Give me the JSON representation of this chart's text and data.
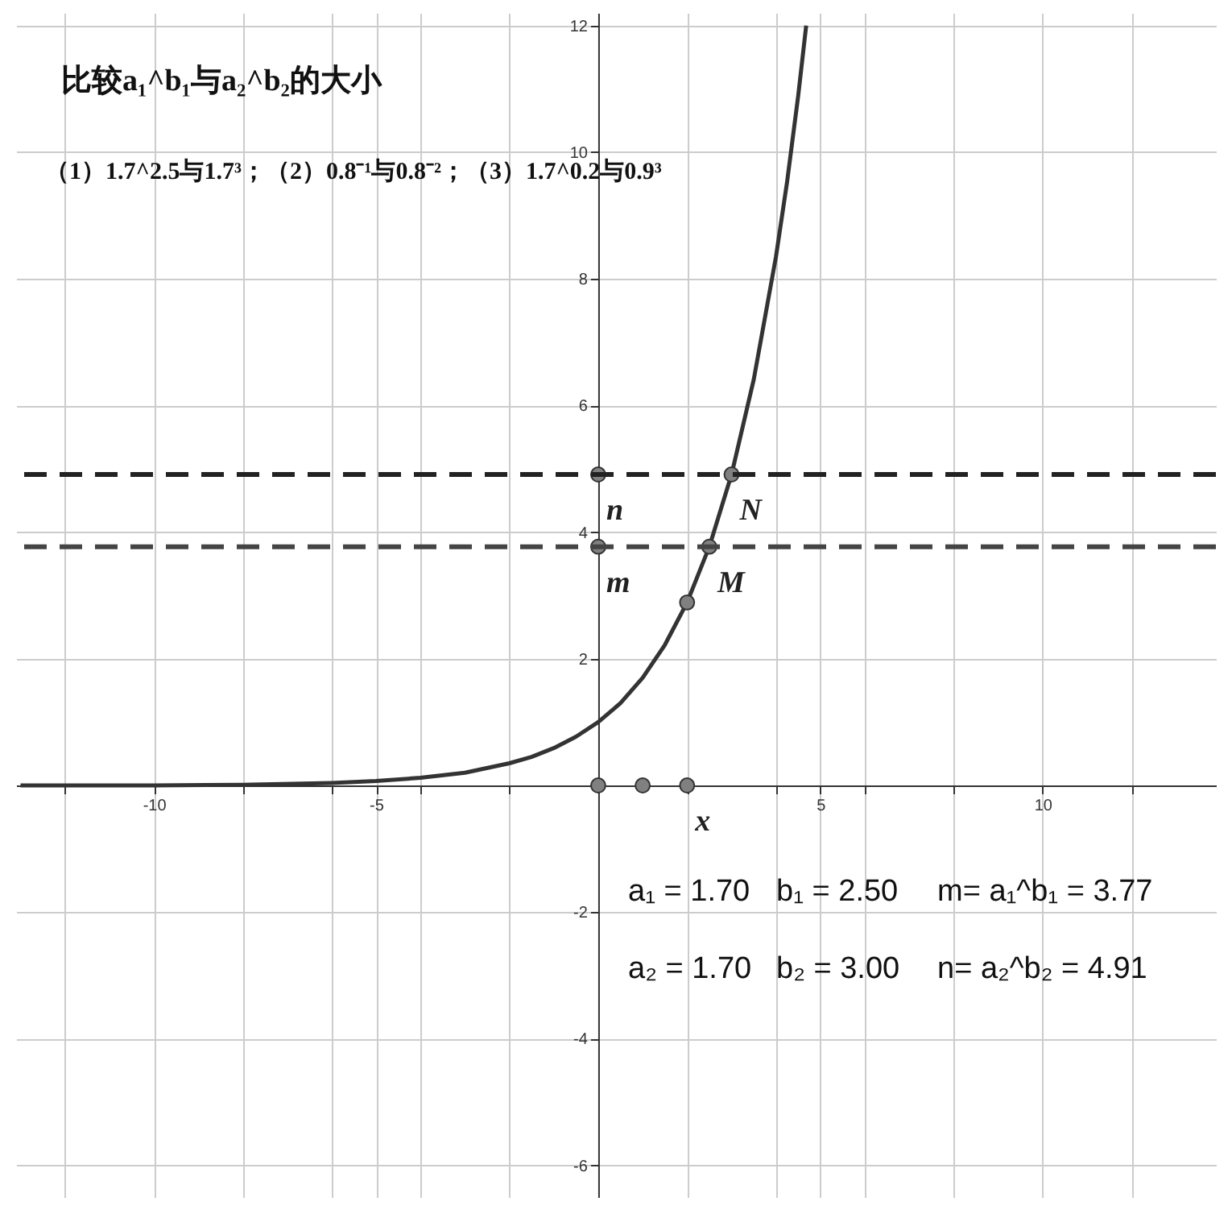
{
  "chart_data": {
    "type": "line",
    "title": "比较a₁^b₁与a₂^b₂的大小",
    "subtitle": "（1）1.7^2.5与1.7³；（2）0.8⁻¹与0.8⁻²；（3）1.7^0.2与0.9³",
    "xlim": [
      -13.1,
      13.9
    ],
    "ylim": [
      -6.5,
      12.2
    ],
    "xticks": [
      {
        "value": -12,
        "label": null
      },
      -10,
      {
        "value": -8,
        "label": null
      },
      {
        "value": -6,
        "label": null
      },
      -5,
      {
        "value": -4,
        "label": null
      },
      {
        "value": -2,
        "label": null
      },
      {
        "value": 2,
        "label": null
      },
      {
        "value": 4,
        "label": null
      },
      5,
      {
        "value": 6,
        "label": null
      },
      {
        "value": 8,
        "label": null
      },
      10,
      {
        "value": 12,
        "label": null
      }
    ],
    "yticks": [
      -6,
      -4,
      -2,
      2,
      4,
      6,
      8,
      10,
      12
    ],
    "grid": true,
    "series": [
      {
        "color": "#333333",
        "x": [
          -13,
          -12,
          -10,
          -8,
          -6,
          -5,
          -4,
          -3,
          -2,
          -1.5,
          -1,
          -0.5,
          0,
          0.5,
          1,
          1.5,
          2,
          2.5,
          3,
          3.5,
          4,
          4.25,
          4.5,
          4.68
        ],
        "values": [
          0,
          0,
          0,
          0.01,
          0.04,
          0.07,
          0.12,
          0.2,
          0.35,
          0.45,
          0.59,
          0.77,
          1,
          1.3,
          1.7,
          2.22,
          2.89,
          3.77,
          4.91,
          6.41,
          8.35,
          9.53,
          10.89,
          12.0
        ]
      },
      {
        "type": "scatter",
        "color": "#808080",
        "marker": "circle",
        "x": [
          0,
          1,
          2,
          2,
          2.5,
          3,
          0,
          0
        ],
        "values": [
          0,
          0,
          0,
          2.89,
          3.77,
          4.91,
          3.77,
          4.91
        ]
      }
    ],
    "ref_lines": [
      {
        "axis": "y",
        "value": 4.91,
        "color": "#222222",
        "line_style": "dashed"
      },
      {
        "axis": "y",
        "value": 3.77,
        "color": "#444444",
        "line_style": "dashed"
      }
    ],
    "annotations": [
      {
        "text": "n",
        "x": 0,
        "y": 4.91
      },
      {
        "text": "m",
        "x": 0,
        "y": 3.77
      },
      {
        "text": "N",
        "x": 3,
        "y": 4.91
      },
      {
        "text": "M",
        "x": 2.5,
        "y": 3.77
      },
      {
        "text": "x",
        "x": 2,
        "y": 0
      },
      "a₁ = 1.70",
      "b₁ = 2.50",
      "m= a₁^b₁ = 3.77",
      "a₂ = 1.70",
      "b₂ = 3.00",
      "n= a₂^b₂ = 4.91"
    ]
  }
}
